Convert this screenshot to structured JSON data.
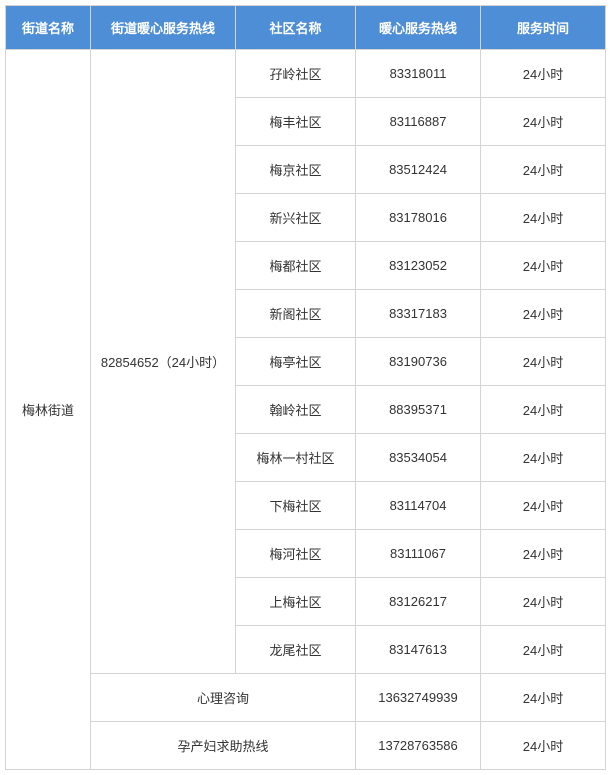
{
  "headers": {
    "street_name": "街道名称",
    "street_hotline": "街道暖心服务热线",
    "community_name": "社区名称",
    "hotline": "暖心服务热线",
    "service_time": "服务时间"
  },
  "street": {
    "name": "梅林街道",
    "hotline": "82854652（24小时）"
  },
  "communities": [
    {
      "name": "孖岭社区",
      "hotline": "83318011",
      "time": "24小时"
    },
    {
      "name": "梅丰社区",
      "hotline": "83116887",
      "time": "24小时"
    },
    {
      "name": "梅京社区",
      "hotline": "83512424",
      "time": "24小时"
    },
    {
      "name": "新兴社区",
      "hotline": "83178016",
      "time": "24小时"
    },
    {
      "name": "梅都社区",
      "hotline": "83123052",
      "time": "24小时"
    },
    {
      "name": "新阁社区",
      "hotline": "83317183",
      "time": "24小时"
    },
    {
      "name": "梅亭社区",
      "hotline": "83190736",
      "time": "24小时"
    },
    {
      "name": "翰岭社区",
      "hotline": "88395371",
      "time": "24小时"
    },
    {
      "name": "梅林一村社区",
      "hotline": "83534054",
      "time": "24小时"
    },
    {
      "name": "下梅社区",
      "hotline": "83114704",
      "time": "24小时"
    },
    {
      "name": "梅河社区",
      "hotline": "83111067",
      "time": "24小时"
    },
    {
      "name": "上梅社区",
      "hotline": "83126217",
      "time": "24小时"
    },
    {
      "name": "龙尾社区",
      "hotline": "83147613",
      "time": "24小时"
    }
  ],
  "extra_rows": [
    {
      "label": "心理咨询",
      "hotline": "13632749939",
      "time": "24小时"
    },
    {
      "label": "孕产妇求助热线",
      "hotline": "13728763586",
      "time": "24小时"
    }
  ]
}
